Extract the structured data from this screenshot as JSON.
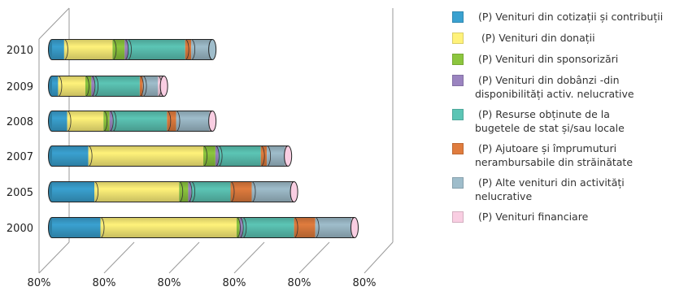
{
  "chart_data": {
    "type": "bar",
    "orientation": "horizontal",
    "stacked": true,
    "style": "3d-cylinder",
    "categories": [
      "2010",
      "2009",
      "2008",
      "2007",
      "2005",
      "2000"
    ],
    "x_tick_labels": [
      "80%",
      "80%",
      "80%",
      "80%",
      "80%",
      "80%"
    ],
    "xlim": [
      0,
      100
    ],
    "grid": false,
    "legend_position": "right",
    "series": [
      {
        "name": " (P) Venituri din cotizații și contribuții",
        "color": "#3aa1d0",
        "values": [
          4,
          2,
          5,
          12,
          14,
          16
        ]
      },
      {
        "name": "  (P) Venituri din donații",
        "color": "#fff27a",
        "values": [
          16,
          9,
          12,
          38,
          28,
          45
        ]
      },
      {
        "name": " (P) Venituri din sponsorizări",
        "color": "#8cc63e",
        "values": [
          4,
          2,
          2,
          4,
          3,
          1
        ]
      },
      {
        "name": " (P) Venituri din dobânzi -din disponibilități activ. nelucrative",
        "color": "#9b84c0",
        "values": [
          1,
          1,
          1,
          1,
          1,
          1
        ]
      },
      {
        "name": " (P) Resurse obținute de la bugetele de stat și/sau locale",
        "color": "#5cc5b5",
        "values": [
          19,
          15,
          18,
          14,
          13,
          17
        ]
      },
      {
        "name": " (P) Ajutoare și împrumuturi nerambursabile din străinătate",
        "color": "#e07c3e",
        "values": [
          2,
          1,
          3,
          2,
          7,
          7
        ]
      },
      {
        "name": " (P) Alte venituri din activități nelucrative",
        "color": "#9fbdcb",
        "values": [
          7,
          5,
          11,
          6,
          13,
          12
        ]
      },
      {
        "name": " (P) Venituri financiare",
        "color": "#f9cee2",
        "values": [
          0,
          2,
          1,
          1,
          1,
          1
        ]
      }
    ]
  },
  "legend": {
    "items": [
      " (P) Venituri din cotizații și contribuții",
      "  (P) Venituri din donații",
      " (P) Venituri din sponsorizări",
      " (P) Venituri din dobânzi -din\ndisponibilități activ. nelucrative",
      " (P) Resurse obținute de la\nbugetele de stat și/sau locale",
      " (P) Ajutoare și împrumuturi\nnerambursabile din străinătate",
      " (P) Alte venituri din activități\nnelucrative",
      " (P) Venituri financiare"
    ]
  }
}
